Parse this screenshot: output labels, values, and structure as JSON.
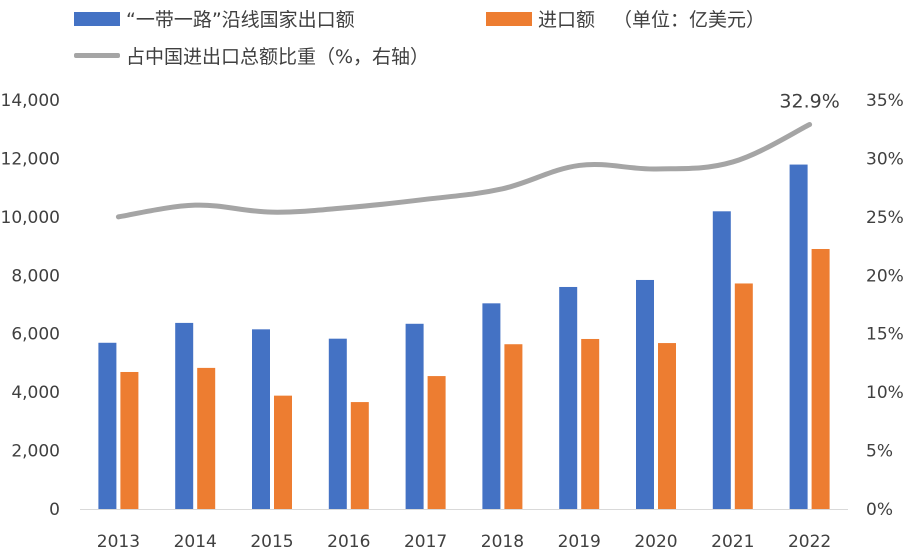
{
  "colors": {
    "exports": "#4472C4",
    "imports": "#ED7D31",
    "share": "#A5A5A5",
    "axis": "#D9D9D9",
    "text": "#404040"
  },
  "legend": {
    "exports": "“一带一路”沿线国家出口额",
    "imports": "进口额",
    "unit": "（单位：亿美元）",
    "share": "占中国进出口总额比重（%，右轴）"
  },
  "chart_data": {
    "type": "bar",
    "categories": [
      "2013",
      "2014",
      "2015",
      "2016",
      "2017",
      "2018",
      "2019",
      "2020",
      "2021",
      "2022"
    ],
    "series": [
      {
        "name": "“一带一路”沿线国家出口额",
        "type": "bar",
        "axis": "left",
        "values": [
          5690,
          6370,
          6150,
          5830,
          6340,
          7040,
          7600,
          7840,
          10190,
          11790
        ]
      },
      {
        "name": "进口额",
        "type": "bar",
        "axis": "left",
        "values": [
          4690,
          4830,
          3880,
          3660,
          4550,
          5640,
          5820,
          5680,
          7720,
          8900
        ]
      },
      {
        "name": "占中国进出口总额比重（%，右轴）",
        "type": "line",
        "axis": "right",
        "values": [
          25.0,
          26.0,
          25.4,
          25.8,
          26.5,
          27.4,
          29.4,
          29.1,
          29.7,
          32.9
        ]
      }
    ],
    "y_left": {
      "min": 0,
      "max": 14000,
      "ticks": [
        "0",
        "2,000",
        "4,000",
        "6,000",
        "8,000",
        "10,000",
        "12,000",
        "14,000"
      ]
    },
    "y_right": {
      "min": 0,
      "max": 35,
      "ticks": [
        "0%",
        "5%",
        "10%",
        "15%",
        "20%",
        "25%",
        "30%",
        "35%"
      ]
    },
    "annotation": "32.9%",
    "grid": false,
    "legend_position": "top-left"
  }
}
